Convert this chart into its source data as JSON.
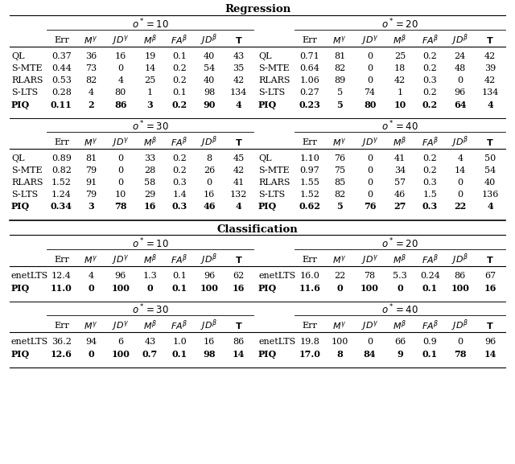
{
  "col_headers": [
    "Err",
    "Mγ",
    "JDγ",
    "Mβ",
    "FAβ",
    "JDβ",
    "T"
  ],
  "reg_rows_o10": [
    [
      "QL",
      "0.37",
      "36",
      "16",
      "19",
      "0.1",
      "40",
      "43"
    ],
    [
      "S-MTE",
      "0.44",
      "73",
      "0",
      "14",
      "0.2",
      "54",
      "35"
    ],
    [
      "RLARS",
      "0.53",
      "82",
      "4",
      "25",
      "0.2",
      "40",
      "42"
    ],
    [
      "S-LTS",
      "0.28",
      "4",
      "80",
      "1",
      "0.1",
      "98",
      "134"
    ],
    [
      "PIQ",
      "0.11",
      "2",
      "86",
      "3",
      "0.2",
      "90",
      "4"
    ]
  ],
  "reg_rows_o20": [
    [
      "QL",
      "0.71",
      "81",
      "0",
      "25",
      "0.2",
      "24",
      "42"
    ],
    [
      "S-MTE",
      "0.64",
      "82",
      "0",
      "18",
      "0.2",
      "48",
      "39"
    ],
    [
      "RLARS",
      "1.06",
      "89",
      "0",
      "42",
      "0.3",
      "0",
      "42"
    ],
    [
      "S-LTS",
      "0.27",
      "5",
      "74",
      "1",
      "0.2",
      "96",
      "134"
    ],
    [
      "PIQ",
      "0.23",
      "5",
      "80",
      "10",
      "0.2",
      "64",
      "4"
    ]
  ],
  "reg_rows_o30": [
    [
      "QL",
      "0.89",
      "81",
      "0",
      "33",
      "0.2",
      "8",
      "45"
    ],
    [
      "S-MTE",
      "0.82",
      "79",
      "0",
      "28",
      "0.2",
      "26",
      "42"
    ],
    [
      "RLARS",
      "1.52",
      "91",
      "0",
      "58",
      "0.3",
      "0",
      "41"
    ],
    [
      "S-LTS",
      "1.24",
      "79",
      "10",
      "29",
      "1.4",
      "16",
      "132"
    ],
    [
      "PIQ",
      "0.34",
      "3",
      "78",
      "16",
      "0.3",
      "46",
      "4"
    ]
  ],
  "reg_rows_o40": [
    [
      "QL",
      "1.10",
      "76",
      "0",
      "41",
      "0.2",
      "4",
      "50"
    ],
    [
      "S-MTE",
      "0.97",
      "75",
      "0",
      "34",
      "0.2",
      "14",
      "54"
    ],
    [
      "RLARS",
      "1.55",
      "85",
      "0",
      "57",
      "0.3",
      "0",
      "40"
    ],
    [
      "S-LTS",
      "1.52",
      "82",
      "0",
      "46",
      "1.5",
      "0",
      "136"
    ],
    [
      "PIQ",
      "0.62",
      "5",
      "76",
      "27",
      "0.3",
      "22",
      "4"
    ]
  ],
  "cls_rows_o10": [
    [
      "enetLTS",
      "12.4",
      "4",
      "96",
      "1.3",
      "0.1",
      "96",
      "62"
    ],
    [
      "PIQ",
      "11.0",
      "0",
      "100",
      "0",
      "0.1",
      "100",
      "16"
    ]
  ],
  "cls_rows_o20": [
    [
      "enetLTS",
      "16.0",
      "22",
      "78",
      "5.3",
      "0.24",
      "86",
      "67"
    ],
    [
      "PIQ",
      "11.6",
      "0",
      "100",
      "0",
      "0.1",
      "100",
      "16"
    ]
  ],
  "cls_rows_o30": [
    [
      "enetLTS",
      "36.2",
      "94",
      "6",
      "43",
      "1.0",
      "16",
      "86"
    ],
    [
      "PIQ",
      "12.6",
      "0",
      "100",
      "0.7",
      "0.1",
      "98",
      "14"
    ]
  ],
  "cls_rows_o40": [
    [
      "enetLTS",
      "19.8",
      "100",
      "0",
      "66",
      "0.9",
      "0",
      "96"
    ],
    [
      "PIQ",
      "17.0",
      "8",
      "84",
      "9",
      "0.1",
      "78",
      "14"
    ]
  ]
}
